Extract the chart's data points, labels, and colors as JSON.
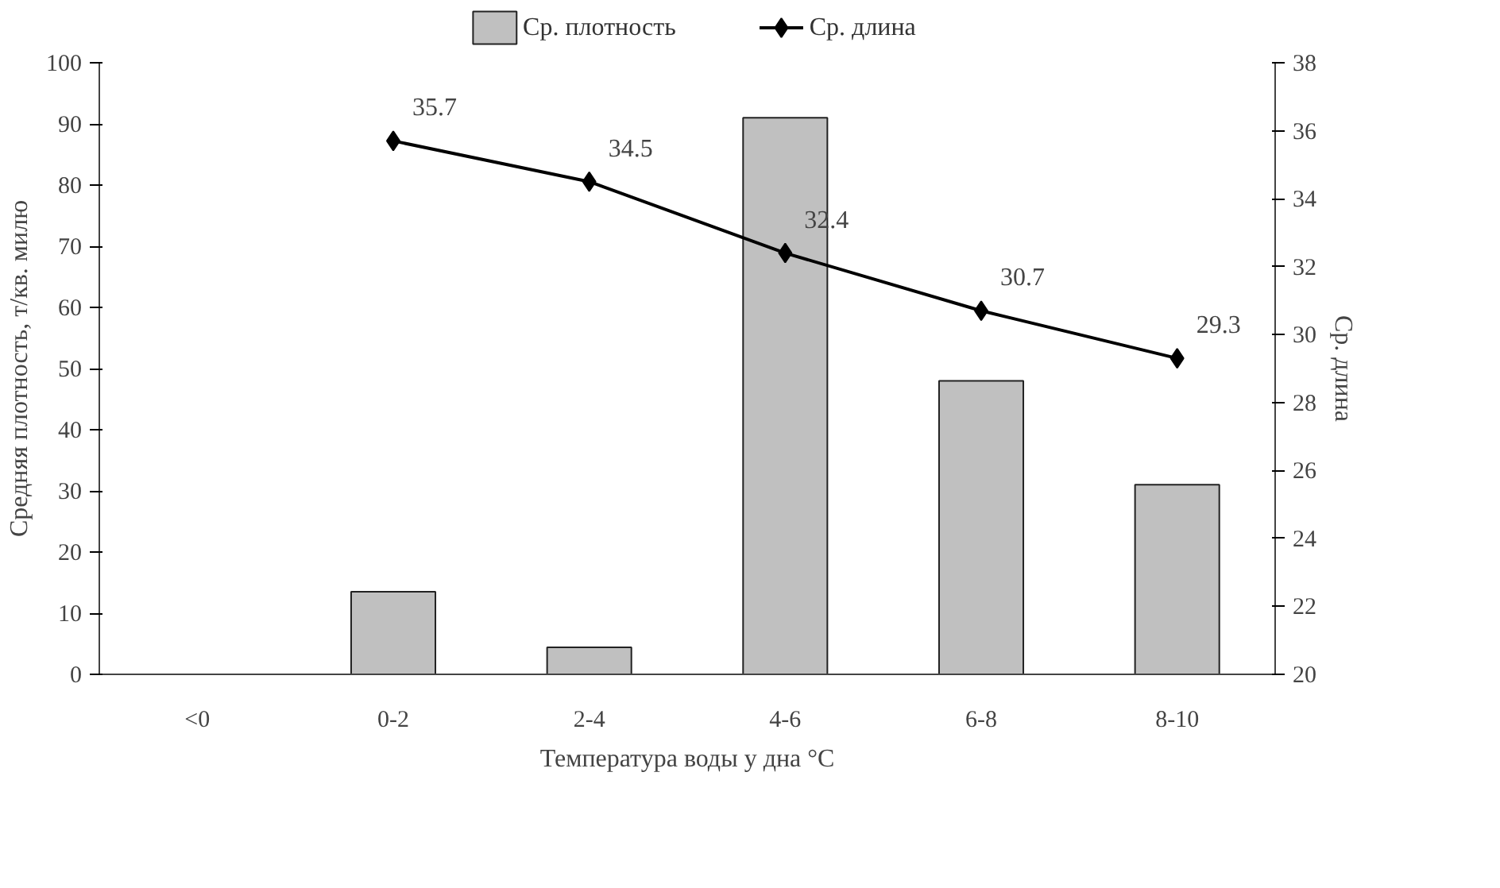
{
  "chart_data": {
    "type": "bar",
    "xlabel": "Температура воды у дна °C",
    "ylabel": "Средняя плотность, т/кв. милю",
    "y2label": "Ср. длина",
    "categories": [
      "<0",
      "0-2",
      "2-4",
      "4-6",
      "6-8",
      "8-10"
    ],
    "series": [
      {
        "name": "Ср. плотность",
        "color": "#c0c0c0",
        "values": [
          null,
          13.5,
          4.4,
          91,
          48,
          31
        ]
      },
      {
        "name": "Ср. длина",
        "type": "line",
        "axis": "y2",
        "color": "#000000",
        "marker": "diamond",
        "values": [
          null,
          35.7,
          34.5,
          32.4,
          30.7,
          29.3
        ],
        "value_labels": [
          null,
          "35.7",
          "34.5",
          "32.4",
          "30.7",
          "29.3"
        ]
      }
    ],
    "ylim": [
      0,
      100
    ],
    "yticks": [
      0,
      10,
      20,
      30,
      40,
      50,
      60,
      70,
      80,
      90,
      100
    ],
    "y2lim": [
      20,
      38
    ],
    "y2ticks": [
      20,
      22,
      24,
      26,
      28,
      30,
      32,
      34,
      36,
      38
    ],
    "grid": false,
    "legend": "top"
  }
}
